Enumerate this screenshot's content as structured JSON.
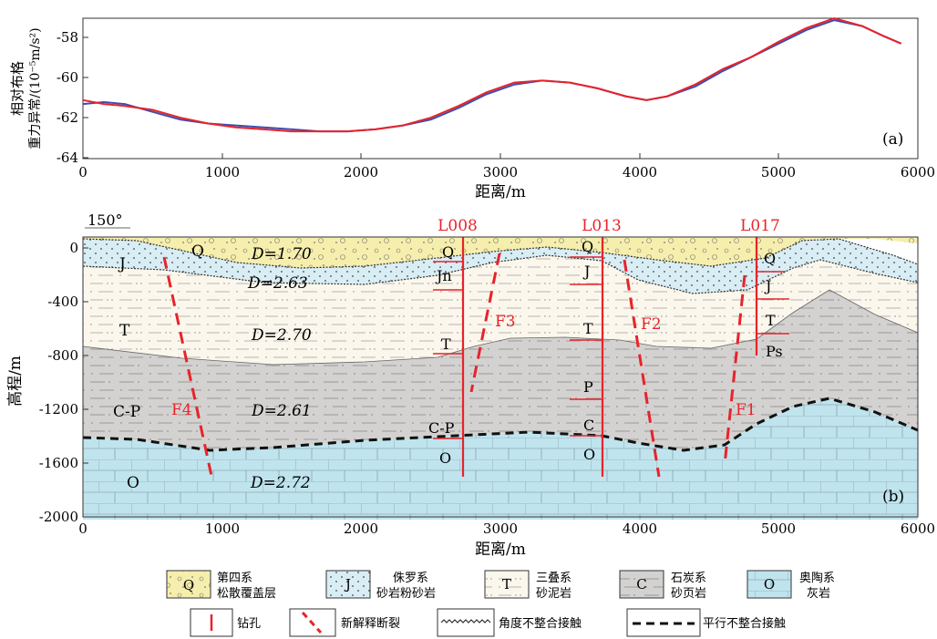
{
  "panel_a": {
    "label": "(a)",
    "xlabel": "距离/m",
    "ylabel_line1": "相对布格",
    "ylabel_line2": "重力异常/(10⁻⁵m/s²)",
    "xticks": [
      "0",
      "1000",
      "2000",
      "3000",
      "4000",
      "5000",
      "6000"
    ],
    "yticks": [
      "-58",
      "-60",
      "-62",
      "-64"
    ],
    "xlim": [
      0,
      6000
    ],
    "ylim": [
      -64,
      -56.8
    ],
    "colors": {
      "observed": "#3a4fb0",
      "calculated": "#e8232b"
    }
  },
  "chart_data": {
    "type": "line",
    "xlabel": "距离/m",
    "ylabel": "相对布格重力异常/(10⁻⁵m/s²)",
    "xlim": [
      0,
      6000
    ],
    "ylim": [
      -64,
      -56.8
    ],
    "series": [
      {
        "color": "#3a4fb0",
        "x": [
          0,
          150,
          300,
          500,
          700,
          900,
          1100,
          1300,
          1500,
          1700,
          1900,
          2100,
          2300,
          2500,
          2700,
          2900,
          3100,
          3300,
          3500,
          3700,
          3900,
          4050,
          4200,
          4400,
          4600,
          4800,
          5000,
          5200,
          5400,
          5600,
          5750,
          5880
        ],
        "y": [
          -61.2,
          -61.1,
          -61.2,
          -61.6,
          -62.0,
          -62.2,
          -62.3,
          -62.4,
          -62.5,
          -62.6,
          -62.6,
          -62.5,
          -62.3,
          -62.0,
          -61.4,
          -60.7,
          -60.2,
          -60.0,
          -60.1,
          -60.4,
          -60.8,
          -61.0,
          -60.8,
          -60.3,
          -59.5,
          -58.8,
          -58.1,
          -57.4,
          -56.9,
          -57.2,
          -57.7,
          -58.1
        ]
      },
      {
        "color": "#e8232b",
        "x": [
          0,
          150,
          300,
          500,
          700,
          900,
          1100,
          1300,
          1500,
          1700,
          1900,
          2100,
          2300,
          2500,
          2700,
          2900,
          3100,
          3300,
          3500,
          3700,
          3900,
          4050,
          4200,
          4400,
          4600,
          4800,
          5000,
          5200,
          5400,
          5600,
          5750,
          5880
        ],
        "y": [
          -61.0,
          -61.2,
          -61.3,
          -61.5,
          -61.9,
          -62.2,
          -62.4,
          -62.5,
          -62.6,
          -62.6,
          -62.6,
          -62.5,
          -62.3,
          -61.9,
          -61.3,
          -60.6,
          -60.1,
          -60.0,
          -60.1,
          -60.4,
          -60.8,
          -61.0,
          -60.8,
          -60.2,
          -59.4,
          -58.8,
          -58.0,
          -57.3,
          -56.8,
          -57.2,
          -57.7,
          -58.1
        ]
      }
    ]
  },
  "panel_b": {
    "label": "(b)",
    "xlabel": "距离/m",
    "ylabel": "高程/m",
    "azimuth": "150°",
    "xticks": [
      "0",
      "1000",
      "2000",
      "3000",
      "4000",
      "5000",
      "6000"
    ],
    "yticks": [
      "0",
      "-400",
      "-800",
      "-1200",
      "-1600",
      "-2000"
    ],
    "boreholes": [
      "L008",
      "L013",
      "L017"
    ],
    "faults": [
      "F1",
      "F2",
      "F3",
      "F4"
    ],
    "densities": [
      "D=1.70",
      "D=2.63",
      "D=2.70",
      "D=2.61",
      "D=2.72"
    ],
    "layer_labels": {
      "left": [
        "Q",
        "J",
        "T",
        "C-P",
        "O"
      ],
      "l008": [
        "Q",
        "Jn",
        "T",
        "C-P",
        "O"
      ],
      "l013": [
        "Q",
        "J",
        "T",
        "P",
        "C",
        "O"
      ],
      "l017": [
        "Q",
        "J",
        "T",
        "Ps"
      ]
    },
    "colors": {
      "Q": "#f6eeac",
      "J": "#d9edf5",
      "T": "#fbf7ec",
      "C": "#d3d2d0",
      "O": "#bfe4ee",
      "borehole": "#e8232b"
    }
  },
  "legend": {
    "items": [
      {
        "symbol": "Q",
        "line1": "第四系",
        "line2": "松散覆盖层"
      },
      {
        "symbol": "J",
        "line1": "侏罗系",
        "line2": "砂岩粉砂岩"
      },
      {
        "symbol": "T",
        "line1": "三叠系",
        "line2": "砂泥岩"
      },
      {
        "symbol": "C",
        "line1": "石炭系",
        "line2": "砂页岩"
      },
      {
        "symbol": "O",
        "line1": "奥陶系",
        "line2": "灰岩"
      }
    ],
    "borehole": "钻孔",
    "fault": "新解释断裂",
    "angular": "角度不整合接触",
    "parallel": "平行不整合接触"
  }
}
